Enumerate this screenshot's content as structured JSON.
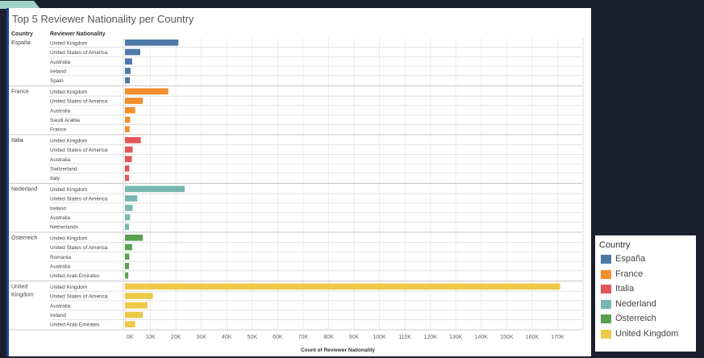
{
  "title": "Top 5 Reviewer Nationality per Country",
  "headers": {
    "country": "Country",
    "nationality": "Reviewer Nationality"
  },
  "legend": {
    "title": "Country",
    "items": [
      {
        "label": "España",
        "color": "#4e79a7"
      },
      {
        "label": "France",
        "color": "#f28e2b"
      },
      {
        "label": "Italia",
        "color": "#e15759"
      },
      {
        "label": "Nederland",
        "color": "#76b7b2"
      },
      {
        "label": "Österreich",
        "color": "#59a14f"
      },
      {
        "label": "United Kingdom",
        "color": "#edc948"
      }
    ]
  },
  "chart_data": {
    "type": "bar",
    "orientation": "horizontal",
    "xlabel": "Count of Reviewer Nationality",
    "xlim": [
      0,
      180000
    ],
    "xticks": [
      "0K",
      "10K",
      "20K",
      "30K",
      "40K",
      "50K",
      "60K",
      "70K",
      "80K",
      "90K",
      "100K",
      "110K",
      "120K",
      "130K",
      "140K",
      "150K",
      "160K",
      "170K"
    ],
    "groups": [
      {
        "country": "España",
        "color": "#4e79a7",
        "rows": [
          {
            "label": "United Kingdom",
            "value": 21000
          },
          {
            "label": "United States of America",
            "value": 6000
          },
          {
            "label": "Australia",
            "value": 2800
          },
          {
            "label": "Ireland",
            "value": 2200
          },
          {
            "label": "Spain",
            "value": 1900
          }
        ]
      },
      {
        "country": "France",
        "color": "#f28e2b",
        "rows": [
          {
            "label": "United Kingdom",
            "value": 17000
          },
          {
            "label": "United States of America",
            "value": 7000
          },
          {
            "label": "Australia",
            "value": 4000
          },
          {
            "label": "Saudi Arabia",
            "value": 2000
          },
          {
            "label": "France",
            "value": 1800
          }
        ]
      },
      {
        "country": "Italia",
        "color": "#e15759",
        "rows": [
          {
            "label": "United Kingdom",
            "value": 6200
          },
          {
            "label": "United States of America",
            "value": 3000
          },
          {
            "label": "Australia",
            "value": 2700
          },
          {
            "label": "Switzerland",
            "value": 1700
          },
          {
            "label": "Italy",
            "value": 1600
          }
        ]
      },
      {
        "country": "Nederland",
        "color": "#76b7b2",
        "rows": [
          {
            "label": "United Kingdom",
            "value": 23500
          },
          {
            "label": "United States of America",
            "value": 4800
          },
          {
            "label": "Ireland",
            "value": 3000
          },
          {
            "label": "Australia",
            "value": 2000
          },
          {
            "label": "Netherlands",
            "value": 1600
          }
        ]
      },
      {
        "country": "Österreich",
        "color": "#59a14f",
        "rows": [
          {
            "label": "United Kingdom",
            "value": 7000
          },
          {
            "label": "United States of America",
            "value": 2800
          },
          {
            "label": "Romania",
            "value": 1700
          },
          {
            "label": "Australia",
            "value": 1600
          },
          {
            "label": "United Arab Emirates",
            "value": 1300
          }
        ]
      },
      {
        "country": "United Kingdom",
        "color": "#edc948",
        "rows": [
          {
            "label": "United Kingdom",
            "value": 171000
          },
          {
            "label": "United States of America",
            "value": 11000
          },
          {
            "label": "Australia",
            "value": 8800
          },
          {
            "label": "Ireland",
            "value": 7000
          },
          {
            "label": "United Arab Emirates",
            "value": 4000
          }
        ]
      }
    ]
  }
}
